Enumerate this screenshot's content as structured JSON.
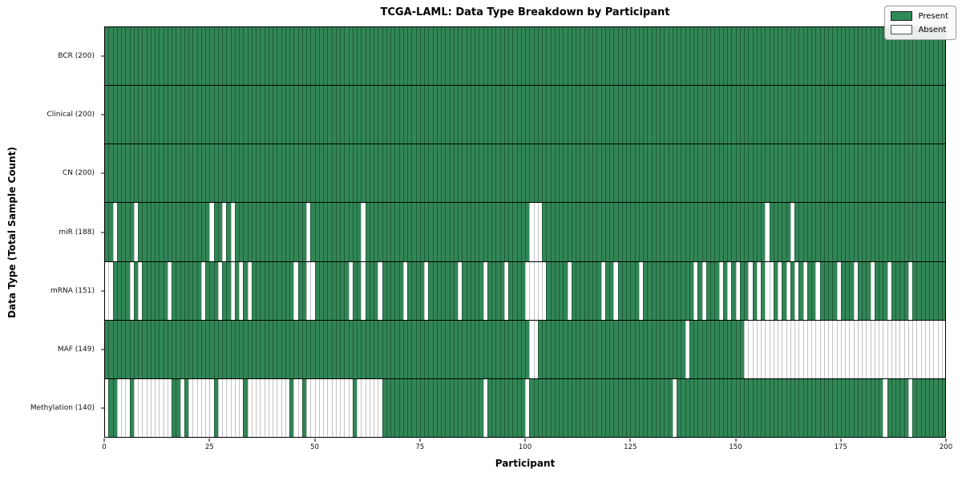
{
  "title": "TCGA-LAML: Data Type Breakdown by Participant",
  "axes": {
    "xlabel": "Participant",
    "ylabel": "Data Type (Total Sample Count)",
    "x_ticks": [
      0,
      25,
      50,
      75,
      100,
      125,
      150,
      175,
      200
    ],
    "x_range": [
      0,
      200
    ]
  },
  "legend": {
    "position": "upper right",
    "present_label": "Present",
    "absent_label": "Absent"
  },
  "colors": {
    "present": "#2E8B57",
    "absent": "#FFFFFF",
    "cell_edge": "#1c3a28",
    "absent_edge": "#c3c3c3"
  },
  "chart_data": {
    "type": "heatmap",
    "x": "participant index 0-199",
    "n_participants": 200,
    "value_encoding": {
      "present": "green",
      "absent": "white"
    },
    "rows": [
      {
        "label": "BCR (200)",
        "data_type": "BCR",
        "present_count": 200,
        "absent_participants": []
      },
      {
        "label": "Clinical (200)",
        "data_type": "Clinical",
        "present_count": 200,
        "absent_participants": []
      },
      {
        "label": "CN (200)",
        "data_type": "CN",
        "present_count": 200,
        "absent_participants": []
      },
      {
        "label": "miR (188)",
        "data_type": "miR",
        "present_count": 188,
        "absent_participants": [
          2,
          7,
          25,
          28,
          30,
          48,
          61,
          101,
          102,
          103,
          157,
          163
        ]
      },
      {
        "label": "mRNA (151)",
        "data_type": "mRNA",
        "present_count": 151,
        "absent_participants": [
          0,
          1,
          6,
          8,
          15,
          23,
          27,
          30,
          32,
          34,
          45,
          48,
          49,
          58,
          61,
          65,
          71,
          76,
          84,
          90,
          95,
          100,
          101,
          102,
          103,
          104,
          110,
          118,
          121,
          127,
          140,
          142,
          146,
          148,
          150,
          153,
          155,
          157,
          158,
          160,
          162,
          164,
          166,
          169,
          174,
          178,
          182,
          186,
          191
        ]
      },
      {
        "label": "MAF (149)",
        "data_type": "MAF",
        "present_count": 149,
        "absent_participants": [
          101,
          102,
          138,
          152,
          153,
          154,
          155,
          156,
          157,
          158,
          159,
          160,
          161,
          162,
          163,
          164,
          165,
          166,
          167,
          168,
          169,
          170,
          171,
          172,
          173,
          174,
          175,
          176,
          177,
          178,
          179,
          180,
          181,
          182,
          183,
          184,
          185,
          186,
          187,
          188,
          189,
          190,
          191,
          192,
          193,
          194,
          195,
          196,
          197,
          198,
          199
        ]
      },
      {
        "label": "Methylation (140)",
        "data_type": "Methylation",
        "present_count": 140,
        "absent_participants": [
          0,
          3,
          4,
          5,
          7,
          8,
          9,
          10,
          11,
          12,
          13,
          14,
          15,
          18,
          20,
          21,
          22,
          23,
          24,
          25,
          27,
          28,
          29,
          30,
          31,
          32,
          34,
          35,
          36,
          37,
          38,
          39,
          40,
          41,
          42,
          43,
          45,
          46,
          48,
          49,
          50,
          51,
          52,
          53,
          54,
          55,
          56,
          57,
          58,
          60,
          61,
          62,
          63,
          64,
          65,
          90,
          100,
          135,
          185,
          191
        ]
      }
    ]
  }
}
